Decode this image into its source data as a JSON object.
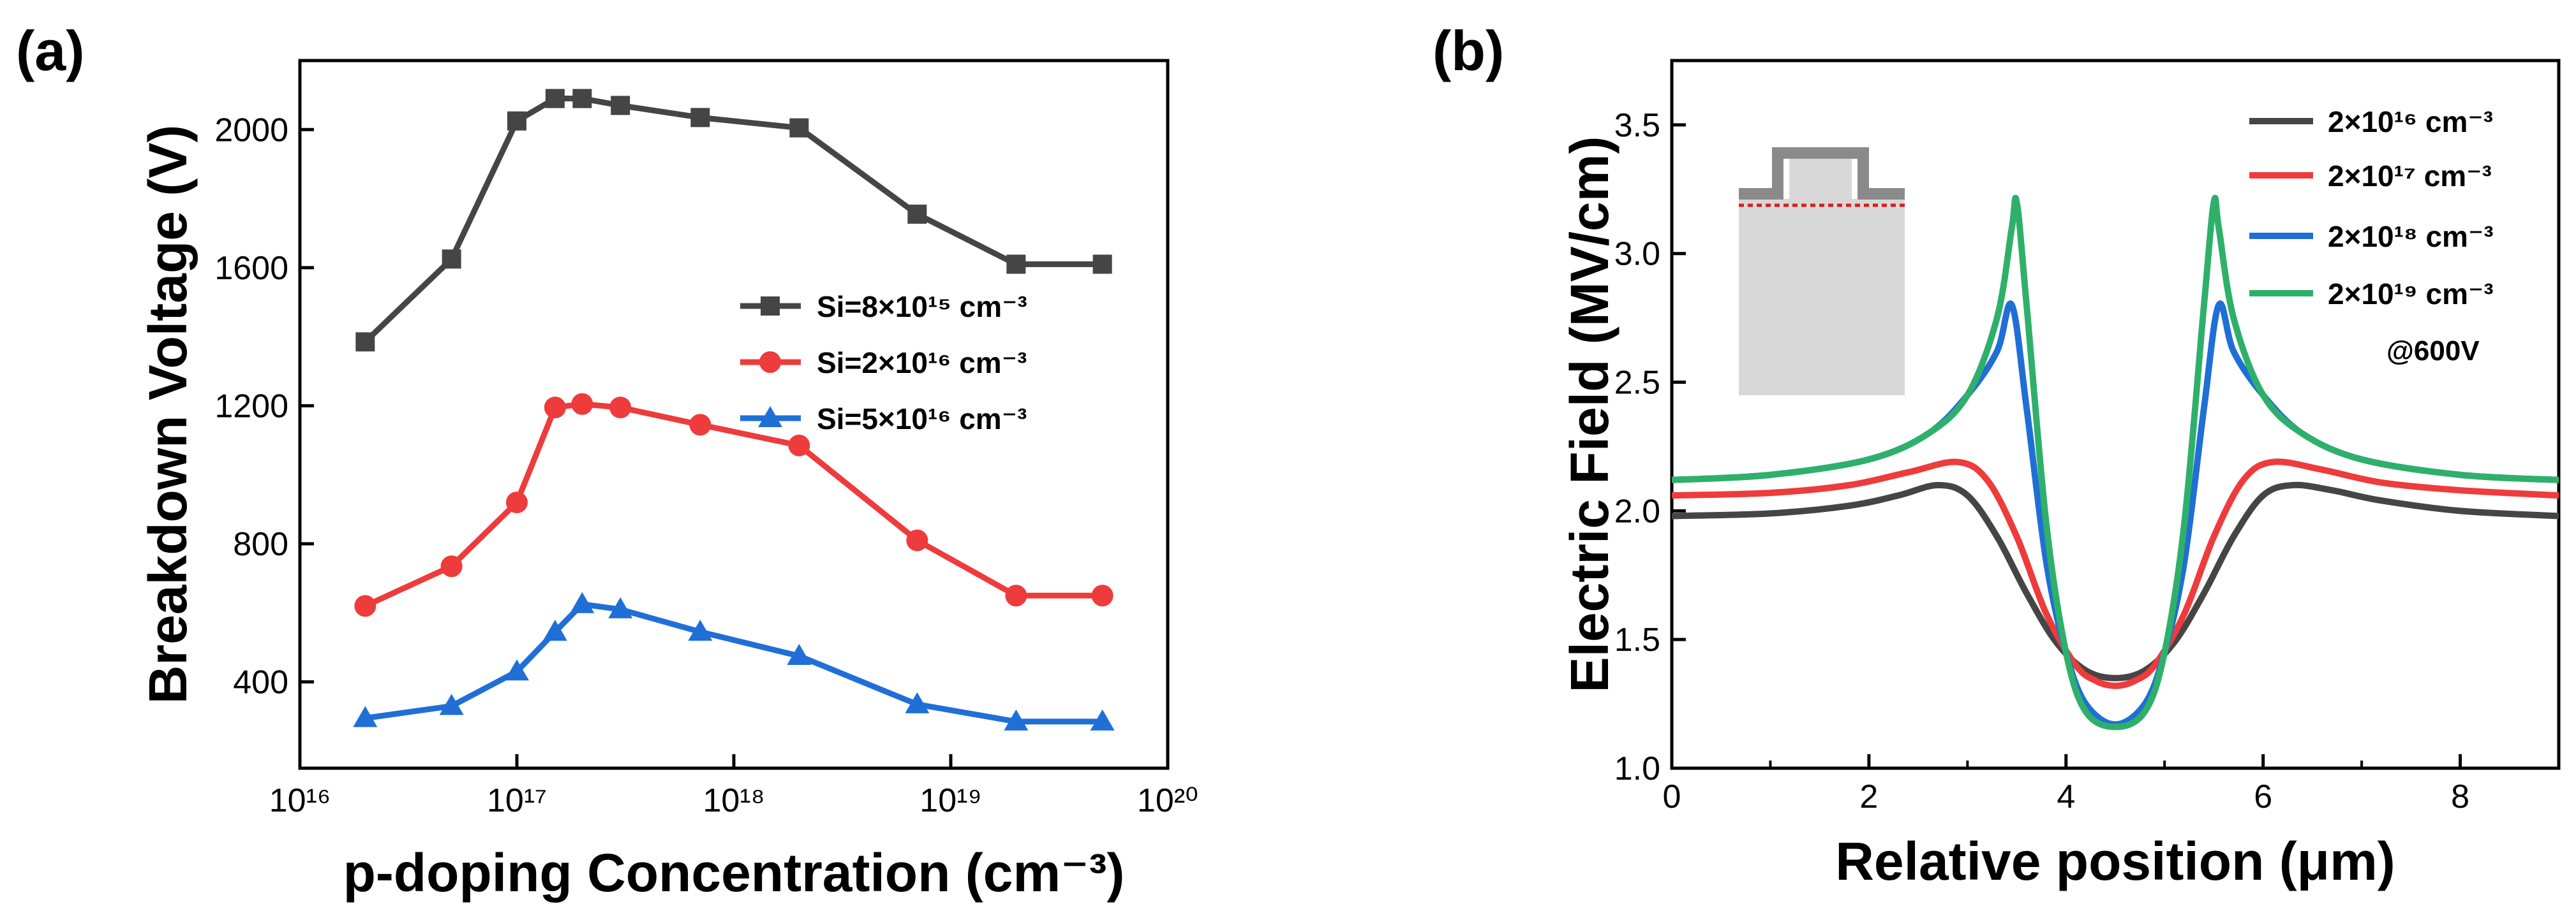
{
  "chart_data": [
    {
      "panel_label": "(a)",
      "type": "line",
      "xscale": "log",
      "xlabel": "p-doping Concentration (cm⁻³)",
      "ylabel": "Breakdown Voltage (V)",
      "xlim": [
        1e+16,
        1e+20
      ],
      "ylim": [
        150,
        2200
      ],
      "x_ticks": [
        {
          "value": 1e+16,
          "label": "10¹⁶"
        },
        {
          "value": 1e+17,
          "label": "10¹⁷"
        },
        {
          "value": 1e+18,
          "label": "10¹⁸"
        },
        {
          "value": 1e+19,
          "label": "10¹⁹"
        },
        {
          "value": 1e+20,
          "label": "10²⁰"
        }
      ],
      "y_ticks": [
        {
          "value": 400,
          "label": "400"
        },
        {
          "value": 800,
          "label": "800"
        },
        {
          "value": 1200,
          "label": "1200"
        },
        {
          "value": 1600,
          "label": "1600"
        },
        {
          "value": 2000,
          "label": "2000"
        }
      ],
      "x": [
        2e+16,
        5e+16,
        1e+17,
        1.5e+17,
        2e+17,
        3e+17,
        7e+17,
        2e+18,
        7e+18,
        2e+19,
        5e+19
      ],
      "series": [
        {
          "name": "Si=8×10¹⁵ cm⁻³",
          "color": "#454545",
          "marker": "square",
          "values": [
            1385,
            1625,
            2025,
            2090,
            2090,
            2070,
            2035,
            2005,
            1755,
            1610,
            1610
          ]
        },
        {
          "name": "Si=2×10¹⁶ cm⁻³",
          "color": "#ee3b3b",
          "marker": "circle",
          "values": [
            620,
            735,
            920,
            1195,
            1205,
            1195,
            1145,
            1085,
            810,
            650,
            650
          ]
        },
        {
          "name": "Si=5×10¹⁶ cm⁻³",
          "color": "#1f6fd6",
          "marker": "triangle",
          "values": [
            295,
            330,
            430,
            545,
            625,
            610,
            545,
            475,
            335,
            285,
            285
          ]
        }
      ],
      "legend_position": "right-center"
    },
    {
      "panel_label": "(b)",
      "type": "line",
      "xlabel": "Relative position (μm)",
      "ylabel": "Electric Field (MV/cm)",
      "xlim": [
        0,
        9
      ],
      "ylim": [
        1.0,
        3.75
      ],
      "x_ticks": [
        {
          "value": 0,
          "label": "0"
        },
        {
          "value": 2,
          "label": "2"
        },
        {
          "value": 4,
          "label": "4"
        },
        {
          "value": 6,
          "label": "6"
        },
        {
          "value": 8,
          "label": "8"
        }
      ],
      "y_ticks": [
        {
          "value": 1.0,
          "label": "1.0"
        },
        {
          "value": 1.5,
          "label": "1.5"
        },
        {
          "value": 2.0,
          "label": "2.0"
        },
        {
          "value": 2.5,
          "label": "2.5"
        },
        {
          "value": 3.0,
          "label": "3.0"
        },
        {
          "value": 3.5,
          "label": "3.5"
        }
      ],
      "series": [
        {
          "name": "2×10¹⁶ cm⁻³",
          "color": "#454545",
          "x": [
            0,
            1.0,
            1.8,
            2.3,
            2.7,
            3.0,
            3.3,
            3.6,
            3.9,
            4.2,
            4.5,
            4.8,
            5.1,
            5.4,
            5.7,
            6.0,
            6.3,
            6.7,
            7.2,
            8.0,
            9.0
          ],
          "values": [
            1.98,
            1.99,
            2.02,
            2.06,
            2.1,
            2.06,
            1.9,
            1.68,
            1.49,
            1.38,
            1.35,
            1.38,
            1.49,
            1.68,
            1.9,
            2.06,
            2.1,
            2.08,
            2.04,
            2.0,
            1.98
          ]
        },
        {
          "name": "2×10¹⁷ cm⁻³",
          "color": "#ee3b3b",
          "x": [
            0,
            1.0,
            1.8,
            2.4,
            2.9,
            3.2,
            3.5,
            3.8,
            4.1,
            4.3,
            4.5,
            4.7,
            4.9,
            5.2,
            5.5,
            5.8,
            6.1,
            6.6,
            7.2,
            8.0,
            9.0
          ],
          "values": [
            2.06,
            2.07,
            2.1,
            2.15,
            2.19,
            2.12,
            1.9,
            1.6,
            1.4,
            1.34,
            1.32,
            1.34,
            1.4,
            1.6,
            1.9,
            2.12,
            2.19,
            2.16,
            2.11,
            2.08,
            2.06
          ]
        },
        {
          "name": "2×10¹⁸ cm⁻³",
          "color": "#1f6fd6",
          "x": [
            0,
            1.0,
            2.0,
            2.6,
            3.0,
            3.3,
            3.45,
            3.6,
            3.8,
            4.0,
            4.2,
            4.5,
            4.8,
            5.0,
            5.2,
            5.4,
            5.55,
            5.7,
            6.0,
            6.4,
            7.0,
            8.0,
            9.0
          ],
          "values": [
            2.12,
            2.14,
            2.2,
            2.3,
            2.45,
            2.62,
            2.8,
            2.4,
            1.8,
            1.45,
            1.25,
            1.17,
            1.25,
            1.45,
            1.8,
            2.4,
            2.8,
            2.62,
            2.45,
            2.3,
            2.2,
            2.14,
            2.12
          ]
        },
        {
          "name": "2×10¹⁹ cm⁻³",
          "color": "#2fb06a",
          "x": [
            0,
            1.0,
            2.0,
            2.6,
            3.0,
            3.3,
            3.45,
            3.5,
            3.6,
            3.8,
            4.0,
            4.2,
            4.5,
            4.8,
            5.0,
            5.2,
            5.4,
            5.5,
            5.55,
            5.7,
            6.0,
            6.4,
            7.0,
            8.0,
            9.0
          ],
          "values": [
            2.12,
            2.14,
            2.2,
            2.3,
            2.45,
            2.75,
            3.1,
            3.2,
            2.8,
            1.95,
            1.45,
            1.22,
            1.16,
            1.22,
            1.45,
            1.95,
            2.8,
            3.2,
            3.1,
            2.75,
            2.45,
            2.3,
            2.2,
            2.14,
            2.12
          ]
        }
      ],
      "annotation": "@600V",
      "legend_position": "top-right"
    }
  ]
}
